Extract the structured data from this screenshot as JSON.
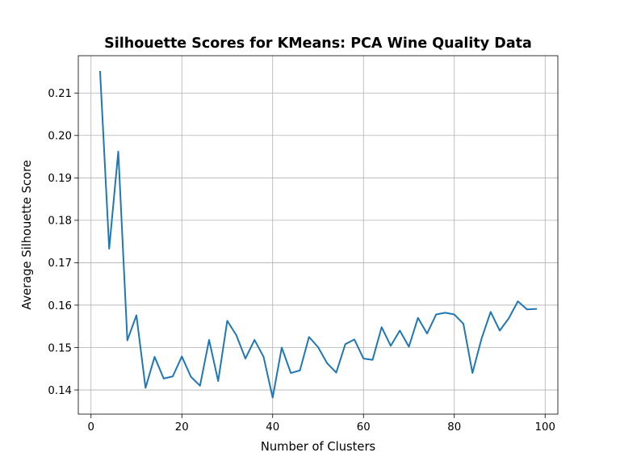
{
  "chart_data": {
    "type": "line",
    "title": "Silhouette Scores for KMeans: PCA Wine Quality Data",
    "xlabel": "Number of Clusters",
    "ylabel": "Average Silhouette Score",
    "xlim": [
      -2.8,
      102.8
    ],
    "ylim": [
      0.1343,
      0.2188
    ],
    "xticks": [
      0,
      20,
      40,
      60,
      80,
      100
    ],
    "yticks": [
      0.14,
      0.15,
      0.16,
      0.17,
      0.18,
      0.19,
      0.2,
      0.21
    ],
    "ytick_labels": [
      "0.14",
      "0.15",
      "0.16",
      "0.17",
      "0.18",
      "0.19",
      "0.20",
      "0.21"
    ],
    "grid": true,
    "line_color": "#1f77b4",
    "series": [
      {
        "x": [
          2,
          4,
          6,
          8,
          10,
          12,
          14,
          16,
          18,
          20,
          22,
          24,
          26,
          28,
          30,
          32,
          34,
          36,
          38,
          40,
          42,
          44,
          46,
          48,
          50,
          52,
          54,
          56,
          58,
          60,
          62,
          64,
          66,
          68,
          70,
          72,
          74,
          76,
          78,
          80,
          82,
          84,
          86,
          88,
          90,
          92,
          94,
          96,
          98
        ],
        "values": [
          0.215,
          0.1733,
          0.1962,
          0.1517,
          0.1576,
          0.1405,
          0.1478,
          0.1427,
          0.1432,
          0.1479,
          0.1431,
          0.141,
          0.1518,
          0.1421,
          0.1563,
          0.1529,
          0.1474,
          0.1518,
          0.1478,
          0.1382,
          0.15,
          0.144,
          0.1446,
          0.1525,
          0.1501,
          0.1463,
          0.1441,
          0.1508,
          0.1519,
          0.1474,
          0.1471,
          0.1548,
          0.1504,
          0.154,
          0.1502,
          0.157,
          0.1533,
          0.1578,
          0.1582,
          0.1578,
          0.1556,
          0.144,
          0.1521,
          0.1584,
          0.154,
          0.1569,
          0.1609,
          0.159,
          0.1591
        ]
      }
    ]
  }
}
